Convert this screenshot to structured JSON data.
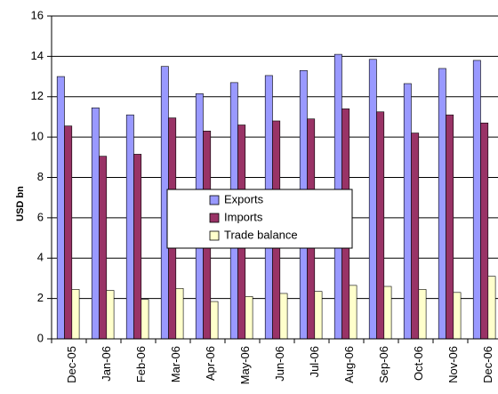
{
  "chart_data": {
    "type": "bar",
    "ylabel": "USD bn",
    "ylim": [
      0,
      16
    ],
    "yticks": [
      0,
      2,
      4,
      6,
      8,
      10,
      12,
      14,
      16
    ],
    "grid": "horizontal",
    "legend_position": "center",
    "categories": [
      "Dec-05",
      "Jan-06",
      "Feb-06",
      "Mar-06",
      "Apr-06",
      "May-06",
      "Jun-06",
      "Jul-06",
      "Aug-06",
      "Sep-06",
      "Oct-06",
      "Nov-06",
      "Dec-06"
    ],
    "series": [
      {
        "name": "Exports",
        "color": "#9999ff",
        "values": [
          13.0,
          11.45,
          11.1,
          13.5,
          12.15,
          12.7,
          13.05,
          13.3,
          14.1,
          13.85,
          12.65,
          13.4,
          13.8
        ]
      },
      {
        "name": "Imports",
        "color": "#993366",
        "values": [
          10.55,
          9.05,
          9.15,
          10.95,
          10.3,
          10.6,
          10.8,
          10.9,
          11.4,
          11.25,
          10.2,
          11.1,
          10.7
        ]
      },
      {
        "name": "Trade balance",
        "color": "#ffffcc",
        "values": [
          2.45,
          2.4,
          1.95,
          2.5,
          1.85,
          2.1,
          2.25,
          2.35,
          2.65,
          2.6,
          2.45,
          2.3,
          3.1
        ]
      }
    ]
  }
}
